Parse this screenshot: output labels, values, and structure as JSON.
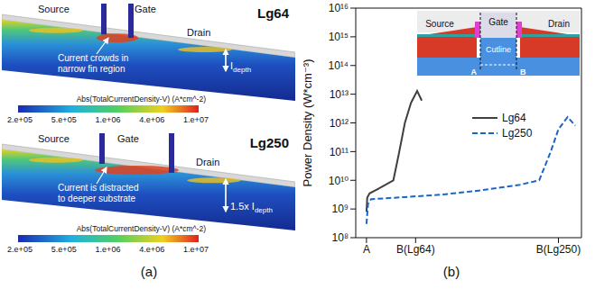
{
  "panel_labels": [
    "(a)",
    "(b)"
  ],
  "panel_a": {
    "images": [
      {
        "name": "Lg64",
        "regions": [
          "Source",
          "Gate",
          "Drain"
        ],
        "annotation": "Current crowds in narrow fin region",
        "depth_label": {
          "text": "I",
          "subscript": "depth"
        },
        "colorbar": {
          "title": "Abs(TotalCurrentDensity-V) (A*cm^-2)",
          "ticks": [
            "2.e+05",
            "5.e+05",
            "1.e+06",
            "4.e+06",
            "1.e+07"
          ]
        }
      },
      {
        "name": "Lg250",
        "regions": [
          "Source",
          "Gate",
          "Drain"
        ],
        "annotation": "Current is distracted to deeper substrate",
        "depth_label": {
          "text": "1.5x I",
          "subscript": "depth"
        },
        "colorbar": {
          "title": "Abs(TotalCurrentDensity-V) (A*cm^-2)",
          "ticks": [
            "2.e+05",
            "5.e+05",
            "1.e+06",
            "4.e+06",
            "1.e+07"
          ]
        }
      }
    ]
  },
  "panel_b_inset": {
    "regions": [
      "Source",
      "Gate",
      "Drain"
    ],
    "cutline": "Cutline",
    "points": [
      "A",
      "B"
    ]
  },
  "chart_data": {
    "type": "line",
    "ylabel": "Power Density (W*cm⁻³)",
    "log": "y",
    "grid": false,
    "legend": "center",
    "xlim": [
      -14,
      280
    ],
    "xticks": [
      {
        "value": 0,
        "label": "A"
      },
      {
        "value": 64,
        "label": "B(Lg64)"
      },
      {
        "value": 250,
        "label": "B(Lg250)"
      }
    ],
    "ylim": [
      100000000,
      10000000000000000
    ],
    "yticks": [
      {
        "value": 100000000,
        "label": "10⁸"
      },
      {
        "value": 1000000000,
        "label": "10⁹"
      },
      {
        "value": 10000000000,
        "label": "10¹⁰"
      },
      {
        "value": 100000000000,
        "label": "10¹¹"
      },
      {
        "value": 1000000000000,
        "label": "10¹²"
      },
      {
        "value": 10000000000000,
        "label": "10¹³"
      },
      {
        "value": 100000000000000,
        "label": "10¹⁴"
      },
      {
        "value": 1000000000000000,
        "label": "10¹⁵"
      },
      {
        "value": 10000000000000000,
        "label": "10¹⁶"
      }
    ],
    "series": [
      {
        "name": "Lg64",
        "color": "#404040",
        "line_style": "solid",
        "x": [
          0,
          1,
          4,
          15,
          25,
          35,
          42,
          50,
          58,
          66,
          72
        ],
        "values": [
          800000000,
          2500000000,
          3500000000,
          5000000000,
          7000000000,
          10000000000,
          80000000000,
          1000000000000,
          5000000000000,
          13000000000000,
          6000000000000
        ]
      },
      {
        "name": "Lg250",
        "color": "#1a66c8",
        "line_style": "dashed",
        "x": [
          0,
          2,
          6,
          50,
          100,
          150,
          200,
          225,
          240,
          250,
          262,
          272
        ],
        "values": [
          300000000,
          1500000000,
          2200000000,
          2600000000,
          3200000000,
          4500000000,
          7000000000,
          10000000000,
          100000000000,
          600000000000,
          1600000000000,
          800000000000
        ]
      }
    ]
  }
}
